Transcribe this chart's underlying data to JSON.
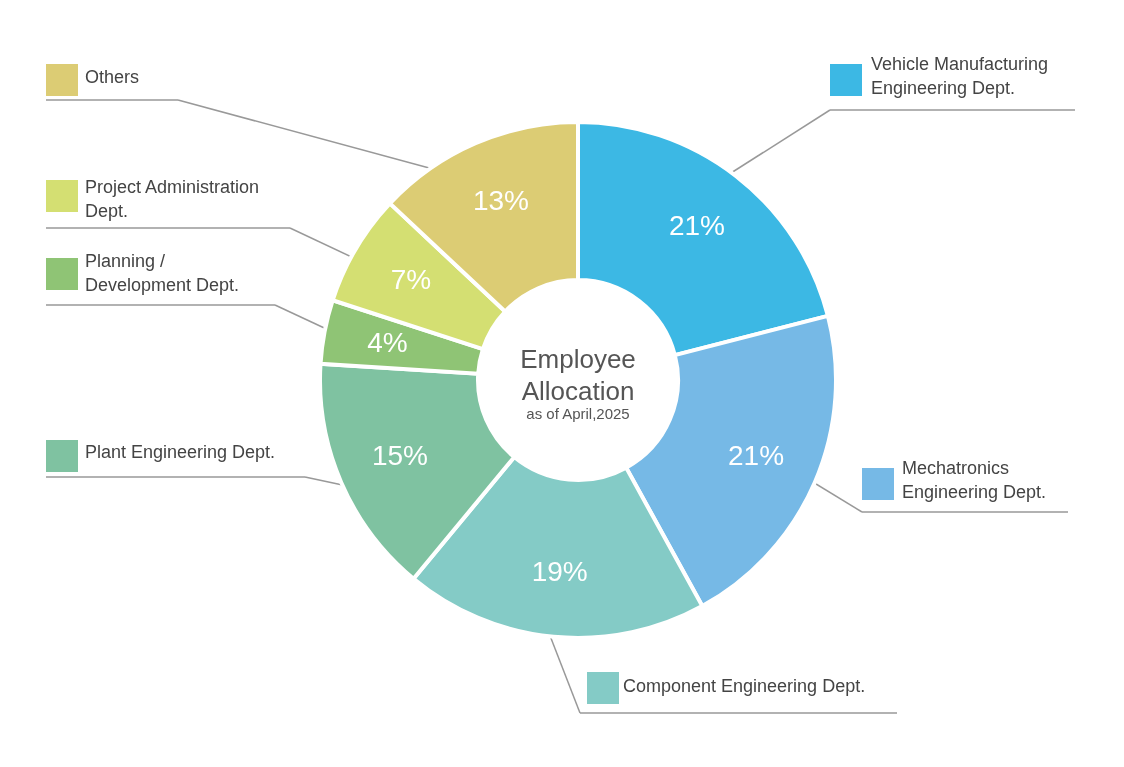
{
  "chart_data": {
    "type": "donut",
    "title": "Employee Allocation",
    "subtitle": "as of April,2025",
    "categories": [
      "Vehicle Manufacturing Engineering Dept.",
      "Mechatronics Engineering Dept.",
      "Component Engineering Dept.",
      "Plant Engineering Dept.",
      "Planning / Development Dept.",
      "Project Administration Dept.",
      "Others"
    ],
    "values": [
      21,
      21,
      19,
      15,
      4,
      7,
      13
    ],
    "colors": [
      "#3cb8e4",
      "#76b9e6",
      "#84cbc6",
      "#7fc2a1",
      "#8fc475",
      "#d4df72",
      "#dccc74"
    ],
    "value_labels": [
      "21%",
      "21%",
      "19%",
      "15%",
      "4%",
      "7%",
      "13%"
    ],
    "legend": "left"
  }
}
